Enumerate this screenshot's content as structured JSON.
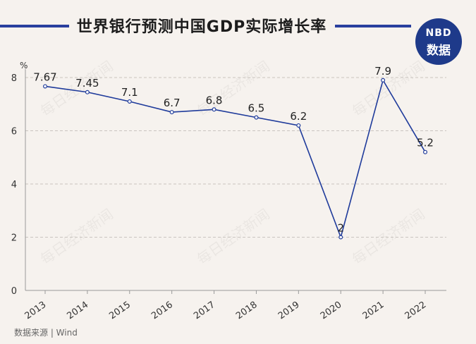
{
  "header": {
    "title": "世界银行预测中国GDP实际增长率"
  },
  "logo": {
    "top_text": "NBD",
    "bottom_text": "数据"
  },
  "watermark": "每日经济新闻",
  "source": "数据来源 | Wind",
  "colors": {
    "line": "#1f3b9b",
    "accent": "#2a3f9e",
    "logo_bg": "#1e3a8a",
    "background": "#f6f2ee"
  },
  "chart_data": {
    "type": "line",
    "title": "世界银行预测中国GDP实际增长率",
    "ylabel": "%",
    "xlabel": "",
    "ylim": [
      0,
      8
    ],
    "yticks": [
      0,
      2,
      4,
      6,
      8
    ],
    "grid": true,
    "categories": [
      "2013",
      "2014",
      "2015",
      "2016",
      "2017",
      "2018",
      "2019",
      "2020",
      "2021",
      "2022"
    ],
    "series": [
      {
        "name": "GDP实际增长率",
        "values": [
          7.67,
          7.45,
          7.1,
          6.7,
          6.8,
          6.5,
          6.2,
          2,
          7.9,
          5.2
        ],
        "labels": [
          "7.67",
          "7.45",
          "7.1",
          "6.7",
          "6.8",
          "6.5",
          "6.2",
          "2",
          "7.9",
          "5.2"
        ]
      }
    ]
  }
}
